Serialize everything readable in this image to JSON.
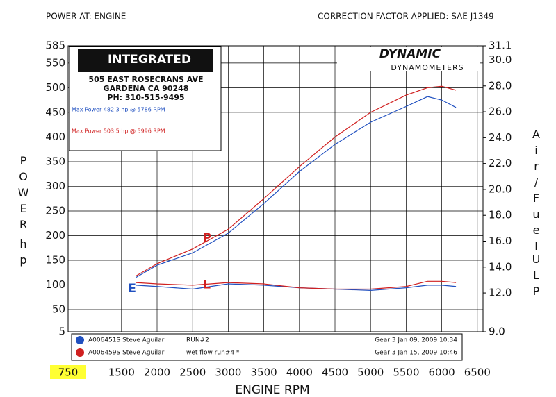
{
  "chart_data": {
    "type": "line",
    "header_left": "POWER AT: ENGINE",
    "header_right": "CORRECTION FACTOR APPLIED: SAE J1349",
    "xlabel": "ENGINE RPM",
    "ylabel": "POWER",
    "ylabel_unit": "hp",
    "y2label": "Air/Fuel",
    "y2label_unit": "ULP",
    "logo": {
      "brand": "INTEGRATED",
      "address": "505 EAST ROSECRANS AVE",
      "city": "GARDENA  CA  90248",
      "phone": "PH: 310-515-9495",
      "max_blue": "Max Power 482.3 hp @ 5786 RPM",
      "max_red": "Max Power 503.5 hp @ 5996 RPM"
    },
    "logo2": {
      "brand": "DYNAMIC",
      "sub": "DYNAMOMETERS"
    },
    "x": [
      1700,
      2000,
      2500,
      3000,
      3500,
      4000,
      4500,
      5000,
      5500,
      5800,
      6000,
      6200
    ],
    "xlim": [
      750,
      6580
    ],
    "xticks": [
      750,
      1500,
      2000,
      2500,
      3000,
      3500,
      4000,
      4500,
      5000,
      5500,
      6000,
      6500
    ],
    "ylim": [
      5,
      585
    ],
    "yticks": [
      5,
      50,
      100,
      150,
      200,
      250,
      300,
      350,
      400,
      450,
      500,
      550,
      585
    ],
    "y2lim": [
      9.0,
      31.1
    ],
    "y2ticks": [
      {
        "value": 9,
        "label": "9.0"
      },
      {
        "value": 12,
        "label": "12.0"
      },
      {
        "value": 14,
        "label": "14.0"
      },
      {
        "value": 16,
        "label": "16.0"
      },
      {
        "value": 18,
        "label": "18.0"
      },
      {
        "value": 20,
        "label": "20.0"
      },
      {
        "value": 22,
        "label": "22.0"
      },
      {
        "value": 24,
        "label": "24.0"
      },
      {
        "value": 26,
        "label": "26.0"
      },
      {
        "value": 28,
        "label": "28.0"
      },
      {
        "value": 30,
        "label": "30.0"
      },
      31.1
    ],
    "grid": true,
    "series": [
      {
        "name": "A006451S Steve Aguilar",
        "color": "#2050c0",
        "values": [
          115,
          140,
          165,
          205,
          265,
          330,
          385,
          430,
          462,
          482,
          475,
          460
        ]
      },
      {
        "name": "A006459S Steve Aguilar",
        "color": "#d02020",
        "values": [
          118,
          143,
          173,
          213,
          275,
          340,
          400,
          450,
          485,
          500,
          503,
          495
        ]
      },
      {
        "color": "#2050c0",
        "axis": "y2",
        "values": [
          12.6,
          12.5,
          12.3,
          12.7,
          12.6,
          12.4,
          12.3,
          12.2,
          12.4,
          12.6,
          12.6,
          12.5
        ]
      },
      {
        "color": "#d02020",
        "axis": "y2",
        "values": [
          12.8,
          12.7,
          12.6,
          12.8,
          12.7,
          12.4,
          12.3,
          12.3,
          12.5,
          12.9,
          12.9,
          12.8
        ]
      }
    ],
    "legend_notes": [
      [
        "RUN#2",
        "Gear 3 Jan 09, 2009 10:34"
      ],
      [
        "wet flow run#4 *",
        "Gear 3 Jan 15, 2009 10:46"
      ]
    ],
    "annotations": [
      {
        "text": "P",
        "x": 2700,
        "y": 195,
        "color": "#d02020"
      },
      {
        "text": "L",
        "x": 2700,
        "y": 100,
        "color": "#d02020"
      },
      {
        "text": "E",
        "x": 1650,
        "y": 92,
        "color": "#2050c0"
      }
    ]
  }
}
